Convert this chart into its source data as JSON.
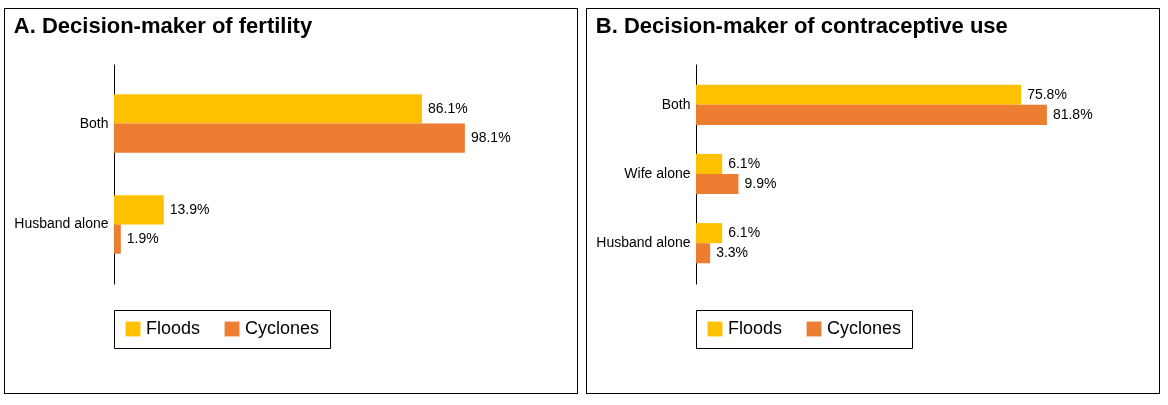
{
  "chart_data": [
    {
      "type": "bar",
      "orientation": "horizontal",
      "title": "A. Decision-maker of fertility",
      "categories": [
        "Both",
        "Husband alone"
      ],
      "legend": "bottom",
      "tick_labels": "y",
      "series": [
        {
          "name": "Floods",
          "color": "#ffc000",
          "values": [
            86.1,
            13.9
          ],
          "value_labels": [
            "86.1%",
            "13.9%"
          ]
        },
        {
          "name": "Cyclones",
          "color": "#ed7d31",
          "values": [
            98.1,
            1.9
          ],
          "value_labels": [
            "98.1%",
            "1.9%"
          ]
        }
      ]
    },
    {
      "type": "bar",
      "orientation": "horizontal",
      "title": "B. Decision-maker of contraceptive use",
      "categories": [
        "Both",
        "Wife alone",
        "Husband alone"
      ],
      "legend": "bottom",
      "tick_labels": "y",
      "series": [
        {
          "name": "Floods",
          "color": "#ffc000",
          "values": [
            75.8,
            6.1,
            6.1
          ],
          "value_labels": [
            "75.8%",
            "6.1%",
            "6.1%"
          ]
        },
        {
          "name": "Cyclones",
          "color": "#ed7d31",
          "values": [
            81.8,
            9.9,
            3.3
          ],
          "value_labels": [
            "81.8%",
            "9.9%",
            "3.3%"
          ]
        }
      ]
    }
  ]
}
